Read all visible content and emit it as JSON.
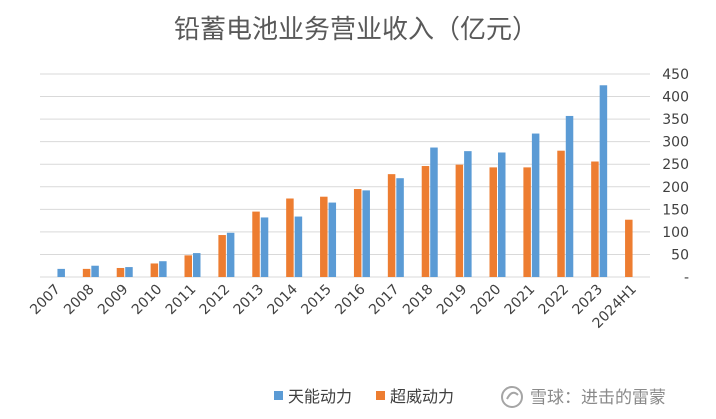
{
  "chart_data": {
    "type": "bar",
    "title": "铅蓄电池业务营业收入（亿元）",
    "categories": [
      "2007",
      "2008",
      "2009",
      "2010",
      "2011",
      "2012",
      "2013",
      "2014",
      "2015",
      "2016",
      "2017",
      "2018",
      "2019",
      "2020",
      "2021",
      "2022",
      "2023",
      "2024H1"
    ],
    "series": [
      {
        "name": "天能动力",
        "color": "#5b9bd5",
        "values": [
          18,
          25,
          22,
          35,
          53,
          98,
          132,
          134,
          165,
          192,
          219,
          287,
          279,
          276,
          318,
          357,
          425,
          null
        ]
      },
      {
        "name": "超威动力",
        "color": "#ed7d31",
        "values": [
          null,
          18,
          20,
          30,
          48,
          93,
          145,
          174,
          178,
          195,
          228,
          246,
          249,
          243,
          243,
          280,
          256,
          127
        ]
      }
    ],
    "yticks": [
      450,
      400,
      350,
      300,
      250,
      200,
      150,
      100,
      50,
      null
    ],
    "ytick_labels": [
      "450",
      "400",
      "350",
      "300",
      "250",
      "200",
      "150",
      "100",
      "50",
      "-"
    ],
    "ylim": [
      0,
      450
    ],
    "y_axis_side": "right",
    "grid": true,
    "legend_position": "bottom"
  },
  "watermark": {
    "text": "雪球：进击的雷蒙",
    "icon": "snowball-logo-icon"
  }
}
